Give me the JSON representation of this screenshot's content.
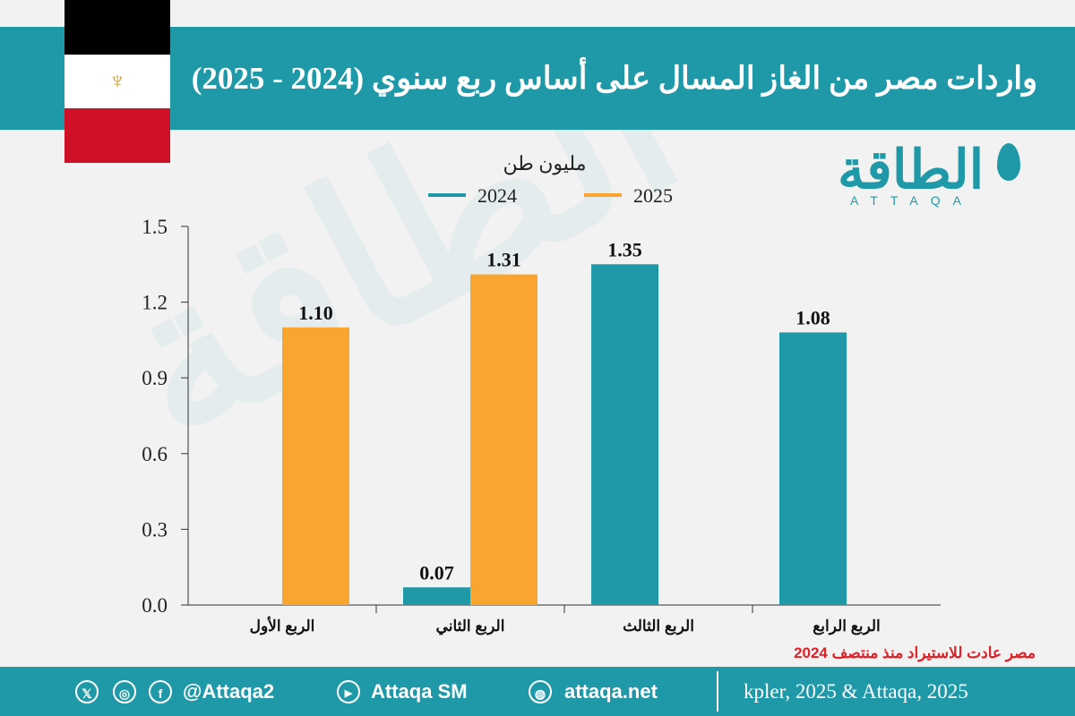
{
  "title": "واردات مصر من الغاز المسال على أساس ربع سنوي (2024 - 2025)",
  "flag": {
    "colors": [
      "#000000",
      "#ffffff",
      "#ce1126"
    ],
    "emblem_icon": "eagle-of-saladin-icon"
  },
  "logo": {
    "ar": "الطاقة",
    "en": "ATTAQA"
  },
  "colors": {
    "teal": "#1f99a8",
    "orange": "#f9a530",
    "note_red": "#e01f26"
  },
  "note": "مصر عادت للاستيراد منذ منتصف 2024",
  "footer": {
    "handle": "@Attaqa2",
    "youtube": "Attaqa SM",
    "website": "attaqa.net",
    "source": "kpler, 2025 & Attaqa, 2025",
    "icons": [
      "x-icon",
      "instagram-icon",
      "facebook-icon",
      "youtube-icon",
      "web-icon"
    ]
  },
  "chart_data": {
    "type": "bar",
    "unit_label": "مليون طن",
    "categories": [
      "الربع الأول",
      "الربع الثاني",
      "الربع الثالث",
      "الربع الرابع"
    ],
    "series": [
      {
        "name": "2024",
        "color": "#1f99a8",
        "values": [
          null,
          0.07,
          1.35,
          1.08
        ]
      },
      {
        "name": "2025",
        "color": "#f9a530",
        "values": [
          1.1,
          1.31,
          null,
          null
        ]
      }
    ],
    "data_labels": [
      [
        "",
        "0.07",
        "1.35",
        "1.08"
      ],
      [
        "1.10",
        "1.31",
        "",
        ""
      ]
    ],
    "yticks": [
      "0.0",
      "0.3",
      "0.6",
      "0.9",
      "1.2",
      "1.5"
    ],
    "ylim": [
      0,
      1.5
    ],
    "legend_position": "top-center",
    "grid": false
  }
}
